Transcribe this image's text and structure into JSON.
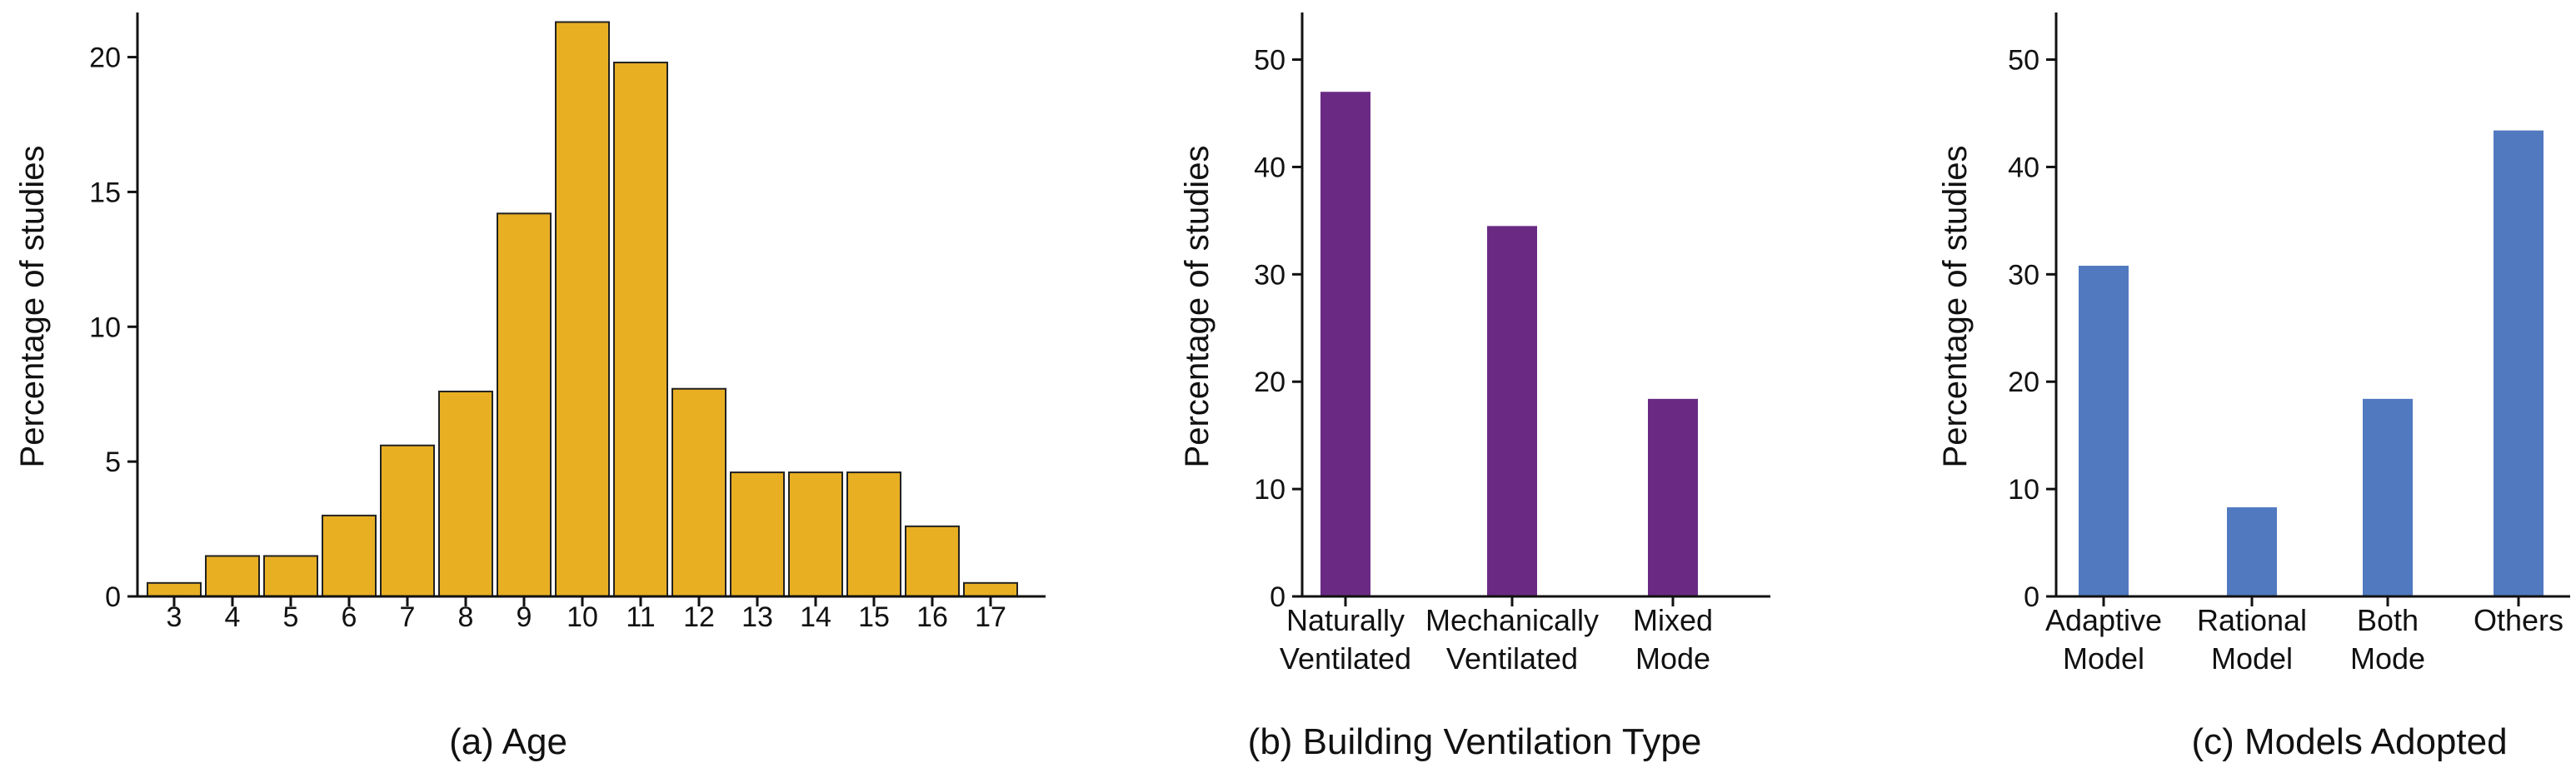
{
  "chart_data": [
    {
      "type": "bar",
      "caption": "(a)  Age",
      "ylabel": "Percentage of studies",
      "xlabel": "",
      "categories": [
        "3",
        "4",
        "5",
        "6",
        "7",
        "8",
        "9",
        "10",
        "11",
        "12",
        "13",
        "14",
        "15",
        "16",
        "17"
      ],
      "values": [
        0.5,
        1.5,
        1.5,
        3.0,
        5.6,
        7.6,
        14.2,
        21.3,
        19.8,
        7.7,
        4.6,
        4.6,
        4.6,
        2.6,
        0.5
      ],
      "ylim": [
        0,
        21.5
      ],
      "yticks": [
        0,
        5,
        10,
        15,
        20
      ],
      "bar_color": "#E8AF23",
      "bar_edge": "#222222",
      "grid": false
    },
    {
      "type": "bar",
      "caption": "(b) Building Ventilation Type",
      "ylabel": "Percentage of studies",
      "xlabel": "",
      "categories": [
        [
          "Naturally",
          "Ventilated"
        ],
        [
          "Mechanically",
          "Ventilated"
        ],
        [
          "Mixed",
          "Mode"
        ]
      ],
      "values": [
        47.0,
        34.5,
        18.4
      ],
      "ylim": [
        0,
        54
      ],
      "yticks": [
        0,
        10,
        20,
        30,
        40,
        50
      ],
      "bar_color": "#6A2A84",
      "grid": false
    },
    {
      "type": "bar",
      "caption": "(c) Models Adopted",
      "ylabel": "Percentage of studies",
      "xlabel": "",
      "categories": [
        [
          "Adaptive",
          "Model"
        ],
        [
          "Rational",
          "Model"
        ],
        [
          "Both",
          "Mode"
        ],
        [
          "Others",
          ""
        ]
      ],
      "values": [
        30.8,
        8.3,
        18.4,
        43.4
      ],
      "ylim": [
        0,
        54
      ],
      "yticks": [
        0,
        10,
        20,
        30,
        40,
        50
      ],
      "bar_color": "#5179C0",
      "grid": false
    }
  ]
}
